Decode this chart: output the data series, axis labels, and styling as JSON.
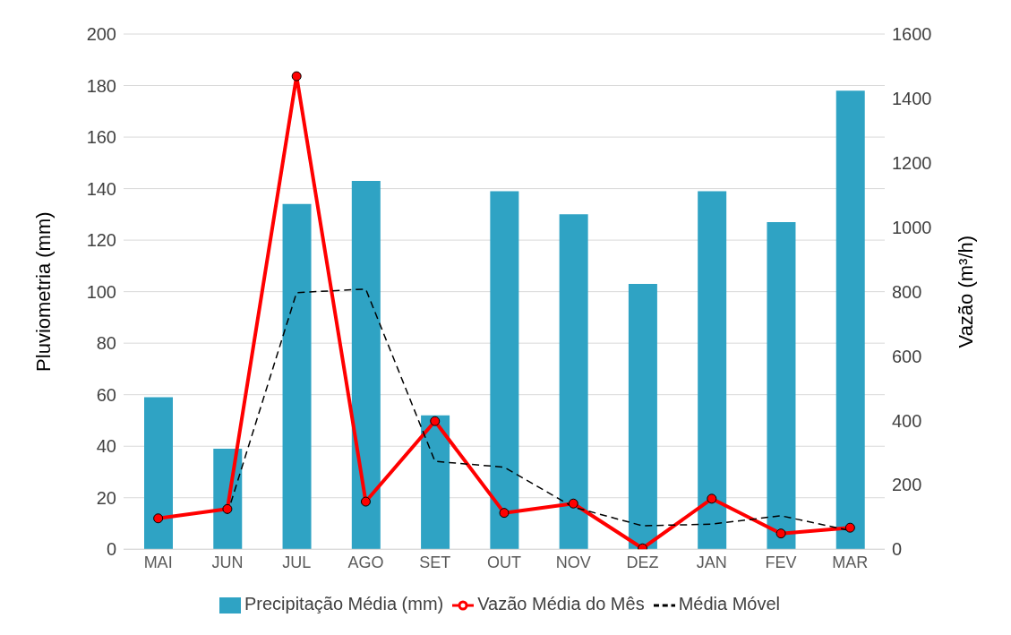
{
  "chart_data": {
    "type": "bar",
    "categories": [
      "MAI",
      "JUN",
      "JUL",
      "AGO",
      "SET",
      "OUT",
      "NOV",
      "DEZ",
      "JAN",
      "FEV",
      "MAR"
    ],
    "ylabel": "Pluviometria  (mm)",
    "y2label": "Vazão (m³/h)",
    "ylim": [
      0,
      200
    ],
    "yticks": [
      0,
      20,
      40,
      60,
      80,
      100,
      120,
      140,
      160,
      180,
      200
    ],
    "y2lim": [
      0,
      1600
    ],
    "y2ticks": [
      0,
      200,
      400,
      600,
      800,
      1000,
      1200,
      1400,
      1600
    ],
    "grid": "y",
    "legend": "bottom",
    "series": [
      {
        "name": "Precipitação Média (mm)",
        "color": "#2fa3c4",
        "values": [
          59,
          39,
          134,
          143,
          52,
          139,
          130,
          103,
          139,
          127,
          178
        ]
      },
      {
        "name": "Vazão Média do Mês",
        "type": "line",
        "axis": "y2",
        "color": "#ff0000",
        "marker": "circle",
        "line_style": "solid",
        "values": [
          96,
          125,
          1469,
          148,
          398,
          113,
          142,
          3,
          157,
          49,
          67
        ]
      },
      {
        "name": "Média Móvel",
        "type": "line",
        "axis": "y2",
        "color": "#000000",
        "marker": "none",
        "line_style": "dashed",
        "values": [
          null,
          110,
          797,
          808,
          273,
          255,
          131,
          73,
          78,
          104,
          58
        ]
      }
    ]
  }
}
